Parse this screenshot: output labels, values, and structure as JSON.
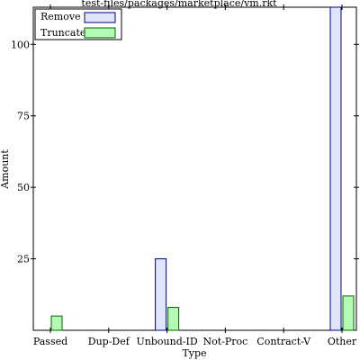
{
  "chart_data": {
    "type": "bar",
    "title": "test-files/packages/marketplace/vm.rkt",
    "xlabel": "Type",
    "ylabel": "Amount",
    "categories": [
      "Passed",
      "Dup-Def",
      "Unbound-ID",
      "Not-Proc",
      "Contract-V",
      "Other"
    ],
    "series": [
      {
        "name": "Remove",
        "values": [
          0,
          0,
          25,
          0,
          0,
          113
        ],
        "fill": "#e0e6fa",
        "stroke": "#000080"
      },
      {
        "name": "Truncate",
        "values": [
          5,
          0,
          8,
          0,
          0,
          12
        ],
        "fill": "#b4fab4",
        "stroke": "#006400"
      }
    ],
    "ylim": [
      0,
      113
    ],
    "yticks": [
      25,
      50,
      75,
      100
    ],
    "ytick_labels": [
      "25",
      "50",
      "75",
      "100"
    ],
    "legend_position": "top-left",
    "grid": false
  }
}
